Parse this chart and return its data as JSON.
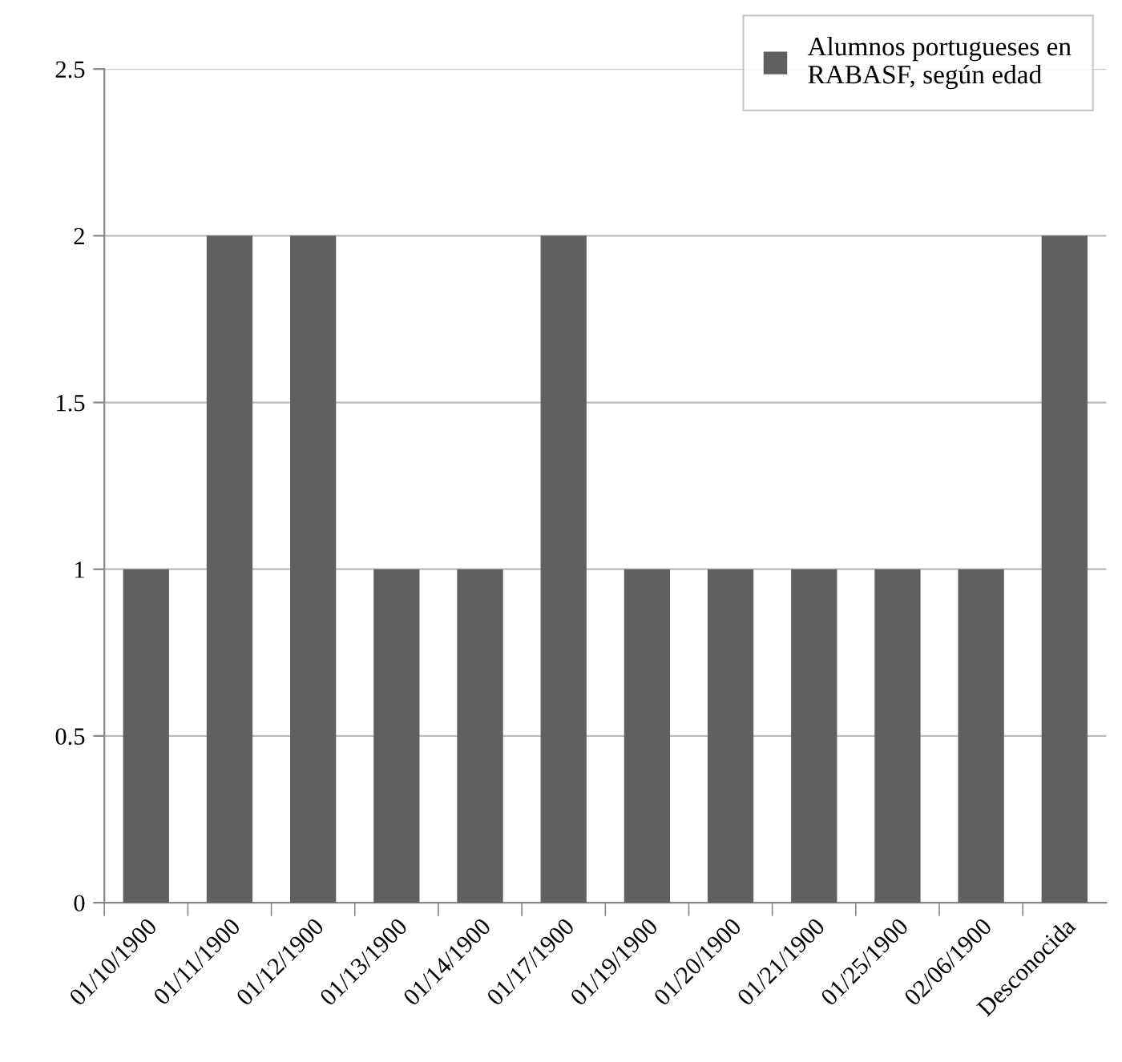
{
  "chart_data": {
    "type": "bar",
    "categories": [
      "01/10/1900",
      "01/11/1900",
      "01/12/1900",
      "01/13/1900",
      "01/14/1900",
      "01/17/1900",
      "01/19/1900",
      "01/20/1900",
      "01/21/1900",
      "01/25/1900",
      "02/06/1900",
      "Desconocida"
    ],
    "series": [
      {
        "name": "Alumnos portugueses en RABASF, según edad",
        "color": "#606060",
        "values": [
          1,
          2,
          2,
          1,
          1,
          2,
          1,
          1,
          1,
          1,
          1,
          2
        ]
      }
    ],
    "ylim": [
      0,
      2.5
    ],
    "yticks": [
      0,
      0.5,
      1,
      1.5,
      2,
      2.5
    ],
    "grid": "y",
    "legend": "top right"
  }
}
